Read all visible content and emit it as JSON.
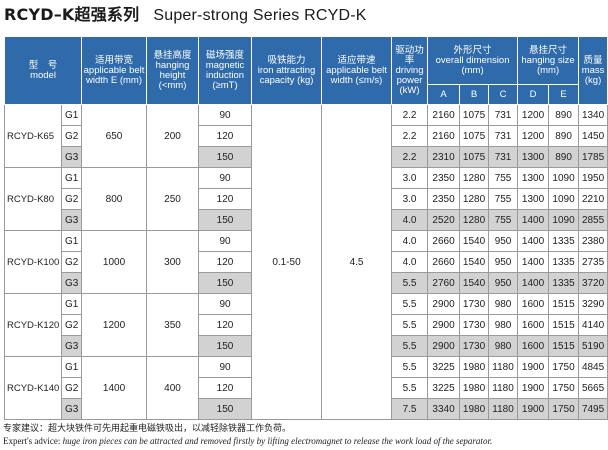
{
  "title": {
    "cn": "RCYD–K超强系列",
    "en": "Super-strong Series RCYD-K"
  },
  "headers": {
    "model": {
      "cn": "型　号",
      "en": "model"
    },
    "belt_width": {
      "cn": "适用带宽",
      "en": "applicable belt width E (mm)"
    },
    "hanging_height": {
      "cn": "悬挂高度",
      "en": "hanging height (<mm)"
    },
    "magnetic_induction": {
      "cn": "磁场强度",
      "en": "magnetic induction (≥mT)"
    },
    "attracting_capacity": {
      "cn": "吸铁能力",
      "en": "iron attracting capacity (kg)"
    },
    "belt_speed": {
      "cn": "适应带速",
      "en": "applicable belt width (≤m/s)"
    },
    "driving_power": {
      "cn": "驱动功率",
      "en": "driving power (kW)"
    },
    "overall_dimension": {
      "cn": "外形尺寸",
      "en": "overall dimension (mm)"
    },
    "hanging_size": {
      "cn": "悬挂尺寸",
      "en": "hanging size (mm)"
    },
    "mass": {
      "cn": "质量",
      "en": "mass (kg)"
    },
    "sub": [
      "A",
      "B",
      "C",
      "D",
      "E"
    ]
  },
  "common": {
    "attracting_capacity": "0.1-50",
    "belt_speed": "4.5"
  },
  "models": [
    {
      "model": "RCYD-K65",
      "width": "650",
      "height": "200",
      "rows": [
        {
          "grade": "G1",
          "induction": "90",
          "power": "2.2",
          "A": "2160",
          "B": "1075",
          "C": "731",
          "D": "1200",
          "E": "890",
          "mass": "1340"
        },
        {
          "grade": "G2",
          "induction": "120",
          "power": "2.2",
          "A": "2160",
          "B": "1075",
          "C": "731",
          "D": "1200",
          "E": "890",
          "mass": "1450"
        },
        {
          "grade": "G3",
          "induction": "150",
          "power": "2.2",
          "A": "2310",
          "B": "1075",
          "C": "731",
          "D": "1300",
          "E": "890",
          "mass": "1785"
        }
      ]
    },
    {
      "model": "RCYD-K80",
      "width": "800",
      "height": "250",
      "rows": [
        {
          "grade": "G1",
          "induction": "90",
          "power": "3.0",
          "A": "2350",
          "B": "1280",
          "C": "755",
          "D": "1300",
          "E": "1090",
          "mass": "1950"
        },
        {
          "grade": "G2",
          "induction": "120",
          "power": "3.0",
          "A": "2350",
          "B": "1280",
          "C": "755",
          "D": "1300",
          "E": "1090",
          "mass": "2210"
        },
        {
          "grade": "G3",
          "induction": "150",
          "power": "4.0",
          "A": "2520",
          "B": "1280",
          "C": "755",
          "D": "1400",
          "E": "1090",
          "mass": "2855"
        }
      ]
    },
    {
      "model": "RCYD-K100",
      "width": "1000",
      "height": "300",
      "rows": [
        {
          "grade": "G1",
          "induction": "90",
          "power": "4.0",
          "A": "2660",
          "B": "1540",
          "C": "950",
          "D": "1400",
          "E": "1335",
          "mass": "2380"
        },
        {
          "grade": "G2",
          "induction": "120",
          "power": "4.0",
          "A": "2660",
          "B": "1540",
          "C": "950",
          "D": "1400",
          "E": "1335",
          "mass": "2735"
        },
        {
          "grade": "G3",
          "induction": "150",
          "power": "5.5",
          "A": "2760",
          "B": "1540",
          "C": "950",
          "D": "1400",
          "E": "1335",
          "mass": "3720"
        }
      ]
    },
    {
      "model": "RCYD-K120",
      "width": "1200",
      "height": "350",
      "rows": [
        {
          "grade": "G1",
          "induction": "90",
          "power": "5.5",
          "A": "2900",
          "B": "1730",
          "C": "980",
          "D": "1600",
          "E": "1515",
          "mass": "3290"
        },
        {
          "grade": "G2",
          "induction": "120",
          "power": "5.5",
          "A": "2900",
          "B": "1730",
          "C": "980",
          "D": "1600",
          "E": "1515",
          "mass": "4140"
        },
        {
          "grade": "G3",
          "induction": "150",
          "power": "5.5",
          "A": "2900",
          "B": "1730",
          "C": "980",
          "D": "1600",
          "E": "1515",
          "mass": "5190"
        }
      ]
    },
    {
      "model": "RCYD-K140",
      "width": "1400",
      "height": "400",
      "rows": [
        {
          "grade": "G1",
          "induction": "90",
          "power": "5.5",
          "A": "3225",
          "B": "1980",
          "C": "1180",
          "D": "1900",
          "E": "1750",
          "mass": "4845"
        },
        {
          "grade": "G2",
          "induction": "120",
          "power": "5.5",
          "A": "3225",
          "B": "1980",
          "C": "1180",
          "D": "1900",
          "E": "1750",
          "mass": "5665"
        },
        {
          "grade": "G3",
          "induction": "150",
          "power": "7.5",
          "A": "3340",
          "B": "1980",
          "C": "1180",
          "D": "1900",
          "E": "1750",
          "mass": "7495"
        }
      ]
    }
  ],
  "notes": {
    "cn": "专家建议：超大块铁件可先用起重电磁铁吸出，以减轻除铁器工作负荷。",
    "en_label": "Expert's advice:",
    "en_text": " huge iron pieces can be attracted and removed firstly by lifting electromagnet to release the work load of the separator."
  }
}
